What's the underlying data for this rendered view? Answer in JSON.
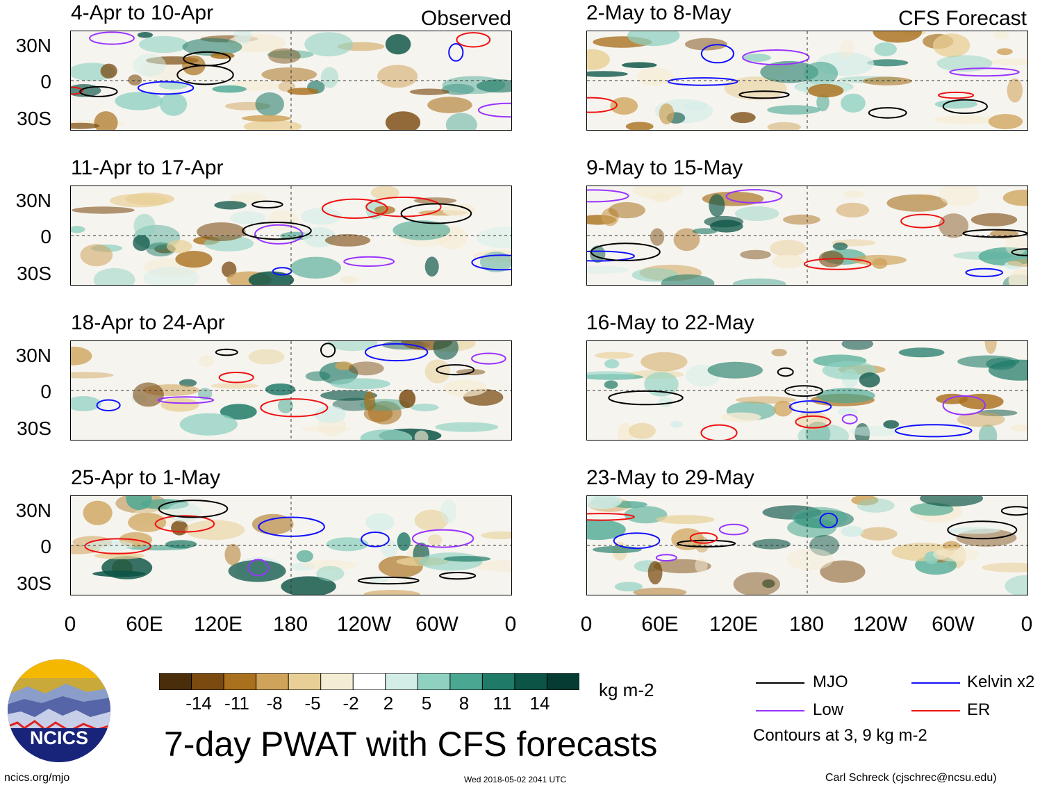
{
  "observed_label": "Observed",
  "forecast_label": "CFS Forecast",
  "panels_left": [
    {
      "title": "4-Apr to 10-Apr"
    },
    {
      "title": "11-Apr to 17-Apr"
    },
    {
      "title": "18-Apr to 24-Apr"
    },
    {
      "title": "25-Apr to 1-May"
    }
  ],
  "panels_right": [
    {
      "title": "2-May to 8-May"
    },
    {
      "title": "9-May to 15-May"
    },
    {
      "title": "16-May to 22-May"
    },
    {
      "title": "23-May to 29-May"
    }
  ],
  "lat_labels": [
    "30N",
    "0",
    "30S"
  ],
  "lon_labels": [
    "0",
    "60E",
    "120E",
    "180",
    "120W",
    "60W",
    "0"
  ],
  "colorbar": {
    "colors": [
      "#4a2e0a",
      "#7a4a10",
      "#a9701d",
      "#cfa35a",
      "#e8cf95",
      "#f5ecd4",
      "#ffffff",
      "#d3ede7",
      "#8fd1c1",
      "#4aa892",
      "#1f7a67",
      "#0b5446",
      "#053b30"
    ],
    "labels": [
      "-14",
      "-11",
      "-8",
      "-5",
      "-2",
      "2",
      "5",
      "8",
      "11",
      "14"
    ],
    "units": "kg m-2"
  },
  "main_title": "7-day PWAT with CFS forecasts",
  "legend": {
    "mjo": {
      "label": "MJO",
      "color": "#000000"
    },
    "kelvin": {
      "label": "Kelvin x2",
      "color": "#1010ff"
    },
    "low": {
      "label": "Low",
      "color": "#9933ff"
    },
    "er": {
      "label": "ER",
      "color": "#ee1111"
    },
    "contours_note": "Contours at 3, 9 kg m-2"
  },
  "logo_text": "NCICS",
  "footer": {
    "url": "ncics.org/mjo",
    "timestamp": "Wed 2018-05-02 2041 UTC",
    "author": "Carl Schreck (cjschrec@ncsu.edu)"
  }
}
